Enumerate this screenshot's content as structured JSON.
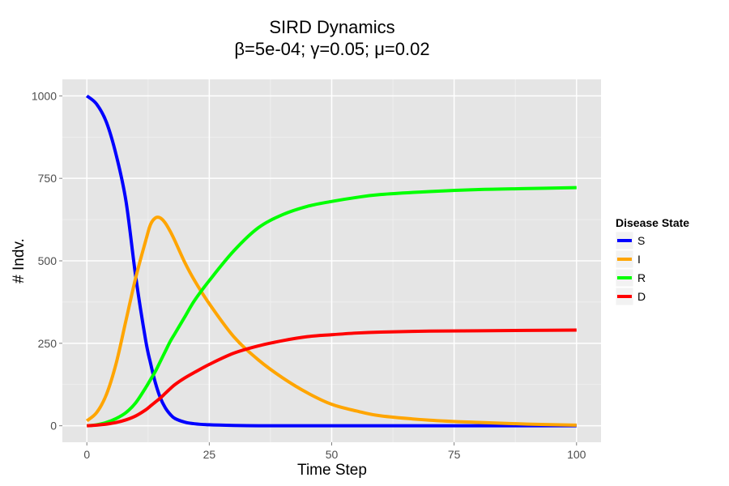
{
  "chart_data": {
    "type": "line",
    "title": "SIRD Dynamics",
    "subtitle": "β=5e-04; γ=0.05; μ=0.02",
    "xlabel": "Time Step",
    "ylabel": "# Indv.",
    "xlim": [
      -5,
      105
    ],
    "ylim": [
      -50,
      1050
    ],
    "x_ticks": [
      0,
      25,
      50,
      75,
      100
    ],
    "y_ticks": [
      0,
      250,
      500,
      750,
      1000
    ],
    "x_tick_labels": [
      "0",
      "25",
      "50",
      "75",
      "100"
    ],
    "y_tick_labels": [
      "0",
      "250",
      "500",
      "750",
      "1000"
    ],
    "grid": true,
    "legend": {
      "title": "Disease State",
      "placement": "right"
    },
    "x": [
      0,
      2,
      4,
      6,
      8,
      10,
      12,
      13,
      14,
      15,
      16,
      17,
      18,
      20,
      22,
      25,
      30,
      35,
      40,
      45,
      50,
      55,
      60,
      70,
      80,
      90,
      100
    ],
    "series": [
      {
        "name": "S",
        "color": "#0000ff",
        "values": [
          1000,
          975,
          920,
          820,
          680,
          450,
          260,
          190,
          130,
          85,
          55,
          35,
          22,
          11,
          6,
          3,
          1,
          0,
          0,
          0,
          0,
          0,
          0,
          0,
          0,
          0,
          0
        ]
      },
      {
        "name": "I",
        "color": "#ffa500",
        "values": [
          15,
          40,
          95,
          190,
          320,
          450,
          560,
          610,
          630,
          630,
          615,
          590,
          560,
          495,
          440,
          370,
          270,
          200,
          145,
          100,
          65,
          45,
          30,
          17,
          10,
          5,
          2
        ]
      },
      {
        "name": "R",
        "color": "#00ff00",
        "values": [
          0,
          3,
          10,
          22,
          40,
          70,
          115,
          140,
          165,
          195,
          225,
          255,
          280,
          330,
          380,
          440,
          530,
          600,
          640,
          665,
          680,
          692,
          701,
          710,
          716,
          719,
          722
        ]
      },
      {
        "name": "D",
        "color": "#ff0000",
        "values": [
          0,
          2,
          5,
          10,
          18,
          30,
          48,
          60,
          72,
          84,
          98,
          112,
          125,
          145,
          162,
          186,
          220,
          242,
          258,
          270,
          276,
          281,
          284,
          287,
          288,
          289,
          290
        ]
      }
    ]
  }
}
